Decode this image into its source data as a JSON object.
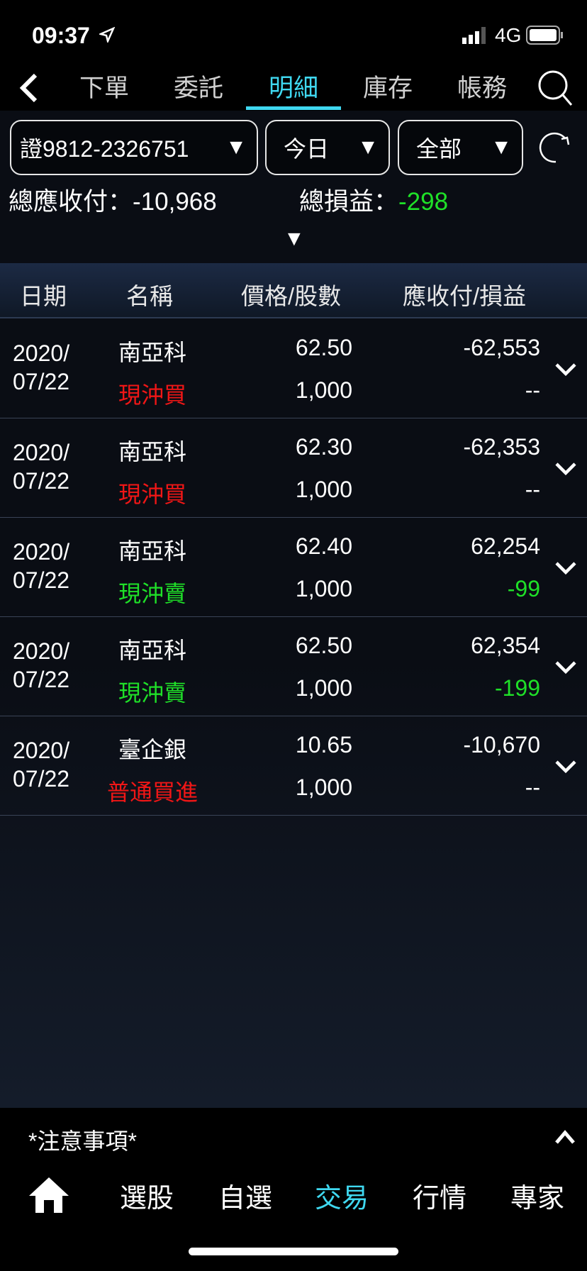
{
  "status": {
    "time": "09:37",
    "network": "4G",
    "icons": [
      "location-arrow-icon",
      "signal-icon",
      "battery-icon"
    ]
  },
  "tabs": [
    {
      "label": "下單"
    },
    {
      "label": "委託"
    },
    {
      "label": "明細",
      "active": true
    },
    {
      "label": "庫存"
    },
    {
      "label": "帳務"
    }
  ],
  "filters": {
    "account": "證9812-2326751",
    "period": "今日",
    "type": "全部"
  },
  "summary": {
    "total_receivable_label": "總應收付：",
    "total_receivable": "-10,968",
    "total_pl_label": "總損益：",
    "total_pl": "-298"
  },
  "table": {
    "headers": [
      "日期",
      "名稱",
      "價格/股數",
      "應收付/損益"
    ],
    "rows": [
      {
        "date1": "2020/",
        "date2": "07/22",
        "name": "南亞科",
        "action": "現沖買",
        "action_color": "red",
        "price": "62.50",
        "shares": "1,000",
        "amount": "-62,553",
        "pl": "--",
        "pl_color": "white"
      },
      {
        "date1": "2020/",
        "date2": "07/22",
        "name": "南亞科",
        "action": "現沖買",
        "action_color": "red",
        "price": "62.30",
        "shares": "1,000",
        "amount": "-62,353",
        "pl": "--",
        "pl_color": "white"
      },
      {
        "date1": "2020/",
        "date2": "07/22",
        "name": "南亞科",
        "action": "現沖賣",
        "action_color": "green",
        "price": "62.40",
        "shares": "1,000",
        "amount": "62,254",
        "pl": "-99",
        "pl_color": "green"
      },
      {
        "date1": "2020/",
        "date2": "07/22",
        "name": "南亞科",
        "action": "現沖賣",
        "action_color": "green",
        "price": "62.50",
        "shares": "1,000",
        "amount": "62,354",
        "pl": "-199",
        "pl_color": "green"
      },
      {
        "date1": "2020/",
        "date2": "07/22",
        "name": "臺企銀",
        "action": "普通買進",
        "action_color": "red",
        "price": "10.65",
        "shares": "1,000",
        "amount": "-10,670",
        "pl": "--",
        "pl_color": "white"
      }
    ]
  },
  "notice": "*注意事項*",
  "bottom_nav": [
    {
      "label": "選股"
    },
    {
      "label": "自選"
    },
    {
      "label": "交易",
      "active": true
    },
    {
      "label": "行情"
    },
    {
      "label": "專家"
    }
  ],
  "colors": {
    "accent": "#3fd8f0",
    "buy": "#f01616",
    "profit_neg": "#1fe028"
  }
}
